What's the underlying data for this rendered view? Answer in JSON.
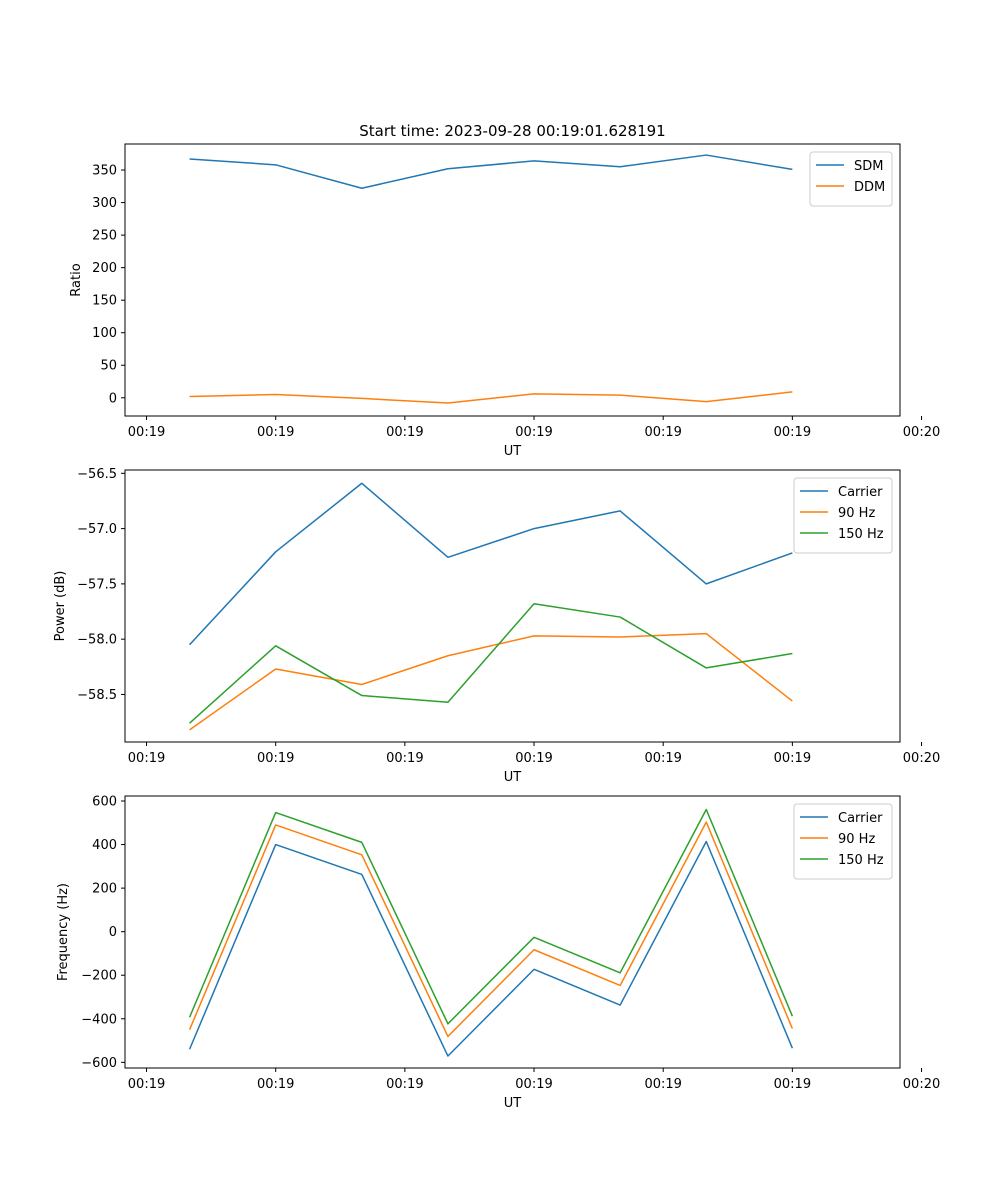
{
  "chart_data": [
    {
      "type": "line",
      "title": "Start time: 2023-09-28 00:19:01.628191",
      "xlabel": "UT",
      "ylabel": "Ratio",
      "x": [
        0,
        1,
        2,
        3,
        4,
        5,
        6,
        7
      ],
      "xlim": [
        -0.75,
        8.25
      ],
      "xticks": [
        -0.5,
        1,
        2.5,
        4,
        5.5,
        7,
        8.5
      ],
      "xtick_labels": [
        "00:19",
        "00:19",
        "00:19",
        "00:19",
        "00:19",
        "00:19",
        "00:20"
      ],
      "ylim": [
        -28,
        390
      ],
      "yticks": [
        0,
        50,
        100,
        150,
        200,
        250,
        300,
        350
      ],
      "ytick_labels": [
        "0",
        "50",
        "100",
        "150",
        "200",
        "250",
        "300",
        "350"
      ],
      "legend_position": "top-right",
      "series": [
        {
          "name": "SDM",
          "color": "#1f77b4",
          "values": [
            367,
            358,
            322,
            352,
            364,
            355,
            373,
            351
          ]
        },
        {
          "name": "DDM",
          "color": "#ff7f0e",
          "values": [
            2,
            5,
            -1,
            -8,
            6,
            4,
            -6,
            9
          ]
        }
      ]
    },
    {
      "type": "line",
      "title": "",
      "xlabel": "UT",
      "ylabel": "Power (dB)",
      "x": [
        0,
        1,
        2,
        3,
        4,
        5,
        6,
        7
      ],
      "xlim": [
        -0.75,
        8.25
      ],
      "xticks": [
        -0.5,
        1,
        2.5,
        4,
        5.5,
        7,
        8.5
      ],
      "xtick_labels": [
        "00:19",
        "00:19",
        "00:19",
        "00:19",
        "00:19",
        "00:19",
        "00:20"
      ],
      "ylim": [
        -58.93,
        -56.47
      ],
      "yticks": [
        -58.5,
        -58.0,
        -57.5,
        -57.0,
        -56.5
      ],
      "ytick_labels": [
        "−58.5",
        "−58.0",
        "−57.5",
        "−57.0",
        "−56.5"
      ],
      "legend_position": "top-right",
      "series": [
        {
          "name": "Carrier",
          "color": "#1f77b4",
          "values": [
            -58.05,
            -57.21,
            -56.59,
            -57.26,
            -57.0,
            -56.84,
            -57.5,
            -57.22
          ]
        },
        {
          "name": "90 Hz",
          "color": "#ff7f0e",
          "values": [
            -58.82,
            -58.27,
            -58.41,
            -58.15,
            -57.97,
            -57.98,
            -57.95,
            -58.56
          ]
        },
        {
          "name": "150 Hz",
          "color": "#2ca02c",
          "values": [
            -58.76,
            -58.06,
            -58.51,
            -58.57,
            -57.68,
            -57.8,
            -58.26,
            -58.13
          ]
        }
      ]
    },
    {
      "type": "line",
      "title": "",
      "xlabel": "UT",
      "ylabel": "Frequency (Hz)",
      "x": [
        0,
        1,
        2,
        3,
        4,
        5,
        6,
        7
      ],
      "xlim": [
        -0.75,
        8.25
      ],
      "xticks": [
        -0.5,
        1,
        2.5,
        4,
        5.5,
        7,
        8.5
      ],
      "xtick_labels": [
        "00:19",
        "00:19",
        "00:19",
        "00:19",
        "00:19",
        "00:19",
        "00:20"
      ],
      "ylim": [
        -626,
        623
      ],
      "yticks": [
        -600,
        -400,
        -200,
        0,
        200,
        400,
        600
      ],
      "ytick_labels": [
        "−600",
        "−400",
        "−200",
        "0",
        "200",
        "400",
        "600"
      ],
      "legend_position": "top-right",
      "series": [
        {
          "name": "Carrier",
          "color": "#1f77b4",
          "values": [
            -540,
            400,
            263,
            -571,
            -173,
            -337,
            414,
            -535
          ]
        },
        {
          "name": "90 Hz",
          "color": "#ff7f0e",
          "values": [
            -450,
            490,
            353,
            -481,
            -83,
            -247,
            503,
            -445
          ]
        },
        {
          "name": "150 Hz",
          "color": "#2ca02c",
          "values": [
            -393,
            547,
            410,
            -423,
            -26,
            -189,
            561,
            -388
          ]
        }
      ]
    }
  ]
}
